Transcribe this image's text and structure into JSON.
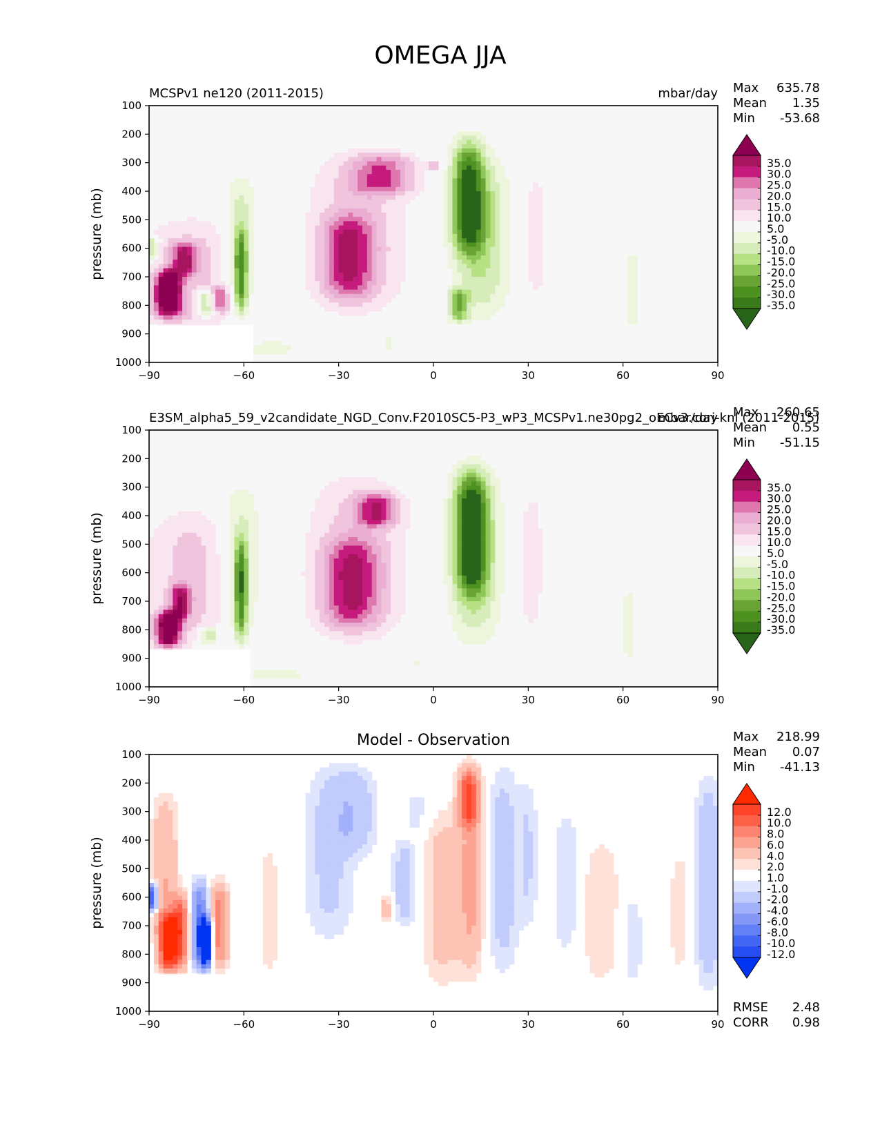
{
  "figure_title": "OMEGA JJA",
  "colors": {
    "background": "#f7f7f7",
    "diff_background": "#ffffff",
    "diff_blank": "#ffffff"
  },
  "chart_data": [
    {
      "type": "contourf",
      "panel": "test",
      "left_title": "MCSPv1 ne120 (2011-2015)",
      "right_title": "mbar/day",
      "center_title": "",
      "xlabel": "",
      "ylabel": "pressure (mb)",
      "xlim": [
        -90,
        90
      ],
      "ylim": [
        1000,
        100
      ],
      "xticks": [
        "−90",
        "−60",
        "−30",
        "0",
        "30",
        "60",
        "90"
      ],
      "yticks": [
        "100",
        "200",
        "300",
        "400",
        "500",
        "600",
        "700",
        "800",
        "900",
        "1000"
      ],
      "stats": [
        {
          "label": "Max",
          "value": "635.78"
        },
        {
          "label": "Mean",
          "value": "1.35"
        },
        {
          "label": "Min",
          "value": "-53.68"
        }
      ],
      "colorbar": {
        "levels": [
          "35.0",
          "30.0",
          "25.0",
          "20.0",
          "15.0",
          "10.0",
          "5.0",
          "-5.0",
          "-10.0",
          "-15.0",
          "-20.0",
          "-25.0",
          "-30.0",
          "-35.0"
        ],
        "colors": [
          "#8e0152",
          "#a8155f",
          "#c51b7d",
          "#de77ae",
          "#eaaed3",
          "#f1c4de",
          "#f9e5f0",
          "#f7f7f7",
          "#edf6dd",
          "#d6ecbb",
          "#b8e186",
          "#8fc65a",
          "#6aa335",
          "#4d9221",
          "#3a7a1a",
          "#276419"
        ]
      },
      "blobs": [
        {
          "x": -77,
          "p": 700,
          "w": 15,
          "h": 420,
          "v": 12
        },
        {
          "x": -84,
          "p": 760,
          "w": 4,
          "h": 160,
          "v": 45
        },
        {
          "x": -79,
          "p": 640,
          "w": 4,
          "h": 120,
          "v": 22
        },
        {
          "x": -72,
          "p": 790,
          "w": 3,
          "h": 90,
          "v": -28
        },
        {
          "x": -68,
          "p": 780,
          "w": 3,
          "h": 90,
          "v": 22
        },
        {
          "x": -89,
          "p": 600,
          "w": 2,
          "h": 80,
          "v": -20
        },
        {
          "x": -61,
          "p": 580,
          "w": 5,
          "h": 470,
          "v": -13
        },
        {
          "x": -61,
          "p": 680,
          "w": 2,
          "h": 300,
          "v": -26
        },
        {
          "x": -52,
          "p": 950,
          "w": 16,
          "h": 60,
          "v": -6
        },
        {
          "x": -24,
          "p": 550,
          "w": 16,
          "h": 560,
          "v": 12
        },
        {
          "x": -16,
          "p": 340,
          "w": 10,
          "h": 150,
          "v": 20
        },
        {
          "x": -27,
          "p": 630,
          "w": 8,
          "h": 300,
          "v": 22
        },
        {
          "x": 0,
          "p": 310,
          "w": 2,
          "h": 30,
          "v": 15
        },
        {
          "x": 15,
          "p": 560,
          "w": 9,
          "h": 560,
          "v": -16
        },
        {
          "x": 11,
          "p": 420,
          "w": 5,
          "h": 400,
          "v": -32
        },
        {
          "x": 8,
          "p": 800,
          "w": 3,
          "h": 120,
          "v": -22
        },
        {
          "x": 32,
          "p": 560,
          "w": 5,
          "h": 520,
          "v": 7
        },
        {
          "x": 63,
          "p": 740,
          "w": 4,
          "h": 380,
          "v": -6
        },
        {
          "x": -14,
          "p": 930,
          "w": 2,
          "h": 60,
          "v": -6
        }
      ],
      "blank": {
        "x0": -90,
        "x1": -57,
        "p0": 870,
        "p1": 1000
      }
    },
    {
      "type": "contourf",
      "panel": "reference",
      "left_title": "E3SM_alpha5_59_v2candidate_NGD_Conv.F2010SC5-P3_wP3_MCSPv1.ne30pg2_oECv3.cori-knl (2011-2015)",
      "right_title": "mbar/day",
      "center_title": "",
      "xlabel": "",
      "ylabel": "pressure (mb)",
      "xlim": [
        -90,
        90
      ],
      "ylim": [
        1000,
        100
      ],
      "xticks": [
        "−90",
        "−60",
        "−30",
        "0",
        "30",
        "60",
        "90"
      ],
      "yticks": [
        "100",
        "200",
        "300",
        "400",
        "500",
        "600",
        "700",
        "800",
        "900",
        "1000"
      ],
      "stats": [
        {
          "label": "Max",
          "value": "260.65"
        },
        {
          "label": "Mean",
          "value": "0.55"
        },
        {
          "label": "Min",
          "value": "-51.15"
        }
      ],
      "colorbar": {
        "levels": [
          "35.0",
          "30.0",
          "25.0",
          "20.0",
          "15.0",
          "10.0",
          "5.0",
          "-5.0",
          "-10.0",
          "-15.0",
          "-20.0",
          "-25.0",
          "-30.0",
          "-35.0"
        ],
        "colors": [
          "#8e0152",
          "#a8155f",
          "#c51b7d",
          "#de77ae",
          "#eaaed3",
          "#f1c4de",
          "#f9e5f0",
          "#f7f7f7",
          "#edf6dd",
          "#d6ecbb",
          "#b8e186",
          "#8fc65a",
          "#6aa335",
          "#4d9221",
          "#3a7a1a",
          "#276419"
        ]
      },
      "blobs": [
        {
          "x": -77,
          "p": 620,
          "w": 14,
          "h": 480,
          "v": 12
        },
        {
          "x": -84,
          "p": 800,
          "w": 4,
          "h": 130,
          "v": 40
        },
        {
          "x": -80,
          "p": 700,
          "w": 3,
          "h": 120,
          "v": 24
        },
        {
          "x": -71,
          "p": 820,
          "w": 3,
          "h": 60,
          "v": -20
        },
        {
          "x": -61,
          "p": 560,
          "w": 6,
          "h": 520,
          "v": -13
        },
        {
          "x": -61,
          "p": 660,
          "w": 2,
          "h": 360,
          "v": -26
        },
        {
          "x": -50,
          "p": 960,
          "w": 18,
          "h": 50,
          "v": -6
        },
        {
          "x": -24,
          "p": 540,
          "w": 16,
          "h": 580,
          "v": 12
        },
        {
          "x": -18,
          "p": 380,
          "w": 6,
          "h": 120,
          "v": 22
        },
        {
          "x": -26,
          "p": 640,
          "w": 9,
          "h": 320,
          "v": 22
        },
        {
          "x": 13,
          "p": 540,
          "w": 8,
          "h": 600,
          "v": -17
        },
        {
          "x": 12,
          "p": 460,
          "w": 5,
          "h": 420,
          "v": -32
        },
        {
          "x": 31,
          "p": 560,
          "w": 5,
          "h": 560,
          "v": 7
        },
        {
          "x": 62,
          "p": 780,
          "w": 4,
          "h": 360,
          "v": -6
        },
        {
          "x": -6,
          "p": 910,
          "w": 2,
          "h": 60,
          "v": -6
        }
      ],
      "blank": {
        "x0": -90,
        "x1": -58,
        "p0": 870,
        "p1": 1000
      }
    },
    {
      "type": "contourf",
      "panel": "difference",
      "left_title": "",
      "right_title": "",
      "center_title": "Model - Observation",
      "xlabel": "",
      "ylabel": "pressure (mb)",
      "xlim": [
        -90,
        90
      ],
      "ylim": [
        1000,
        100
      ],
      "xticks": [
        "−90",
        "−60",
        "−30",
        "0",
        "30",
        "60",
        "90"
      ],
      "yticks": [
        "100",
        "200",
        "300",
        "400",
        "500",
        "600",
        "700",
        "800",
        "900",
        "1000"
      ],
      "stats": [
        {
          "label": "Max",
          "value": "218.99"
        },
        {
          "label": "Mean",
          "value": "0.07"
        },
        {
          "label": "Min",
          "value": "-41.13"
        }
      ],
      "metrics": [
        {
          "label": "RMSE",
          "value": "2.48"
        },
        {
          "label": "CORR",
          "value": "0.98"
        }
      ],
      "colorbar": {
        "levels": [
          "12.0",
          "10.0",
          "8.0",
          "6.0",
          "4.0",
          "2.0",
          "1.0",
          "-1.0",
          "-2.0",
          "-4.0",
          "-6.0",
          "-8.0",
          "-10.0",
          "-12.0"
        ],
        "colors": [
          "#ff2a00",
          "#fe452a",
          "#fd6248",
          "#fc8470",
          "#fca491",
          "#fdc4b6",
          "#fee2da",
          "#ffffff",
          "#dfe5fd",
          "#c1cbfc",
          "#a2b1fa",
          "#8598f8",
          "#6480f6",
          "#4466f5",
          "#254df3",
          "#0034f0"
        ]
      },
      "blobs": [
        {
          "x": -85,
          "p": 500,
          "w": 4,
          "h": 500,
          "v": 4
        },
        {
          "x": -84,
          "p": 760,
          "w": 3,
          "h": 200,
          "v": 13
        },
        {
          "x": -80,
          "p": 720,
          "w": 3,
          "h": 260,
          "v": 9
        },
        {
          "x": -74,
          "p": 700,
          "w": 3,
          "h": 300,
          "v": -9
        },
        {
          "x": -72,
          "p": 760,
          "w": 2,
          "h": 180,
          "v": -14
        },
        {
          "x": -68,
          "p": 700,
          "w": 3,
          "h": 300,
          "v": 7
        },
        {
          "x": -89,
          "p": 600,
          "w": 1.5,
          "h": 100,
          "v": -12
        },
        {
          "x": -52,
          "p": 650,
          "w": 4,
          "h": 500,
          "v": 1.5
        },
        {
          "x": -33,
          "p": 450,
          "w": 8,
          "h": 600,
          "v": -2.5
        },
        {
          "x": -25,
          "p": 300,
          "w": 7,
          "h": 300,
          "v": -3
        },
        {
          "x": -15,
          "p": 640,
          "w": 2,
          "h": 100,
          "v": 3
        },
        {
          "x": -9,
          "p": 550,
          "w": 4,
          "h": 300,
          "v": -3
        },
        {
          "x": -5,
          "p": 300,
          "w": 4,
          "h": 150,
          "v": -1.5
        },
        {
          "x": 3,
          "p": 600,
          "w": 6,
          "h": 600,
          "v": 3
        },
        {
          "x": 12,
          "p": 500,
          "w": 4,
          "h": 700,
          "v": 4.5
        },
        {
          "x": 11,
          "p": 250,
          "w": 3,
          "h": 200,
          "v": 8
        },
        {
          "x": 22,
          "p": 500,
          "w": 5,
          "h": 700,
          "v": -3
        },
        {
          "x": 30,
          "p": 450,
          "w": 3,
          "h": 500,
          "v": -2
        },
        {
          "x": 42,
          "p": 550,
          "w": 4,
          "h": 500,
          "v": -2
        },
        {
          "x": 53,
          "p": 650,
          "w": 6,
          "h": 500,
          "v": 2
        },
        {
          "x": 63,
          "p": 750,
          "w": 3,
          "h": 300,
          "v": -2
        },
        {
          "x": 78,
          "p": 650,
          "w": 3,
          "h": 400,
          "v": 2
        },
        {
          "x": 87,
          "p": 550,
          "w": 4,
          "h": 700,
          "v": -4
        }
      ],
      "blank": {
        "x0": -90,
        "x1": -62,
        "p0": 870,
        "p1": 1000
      }
    }
  ]
}
